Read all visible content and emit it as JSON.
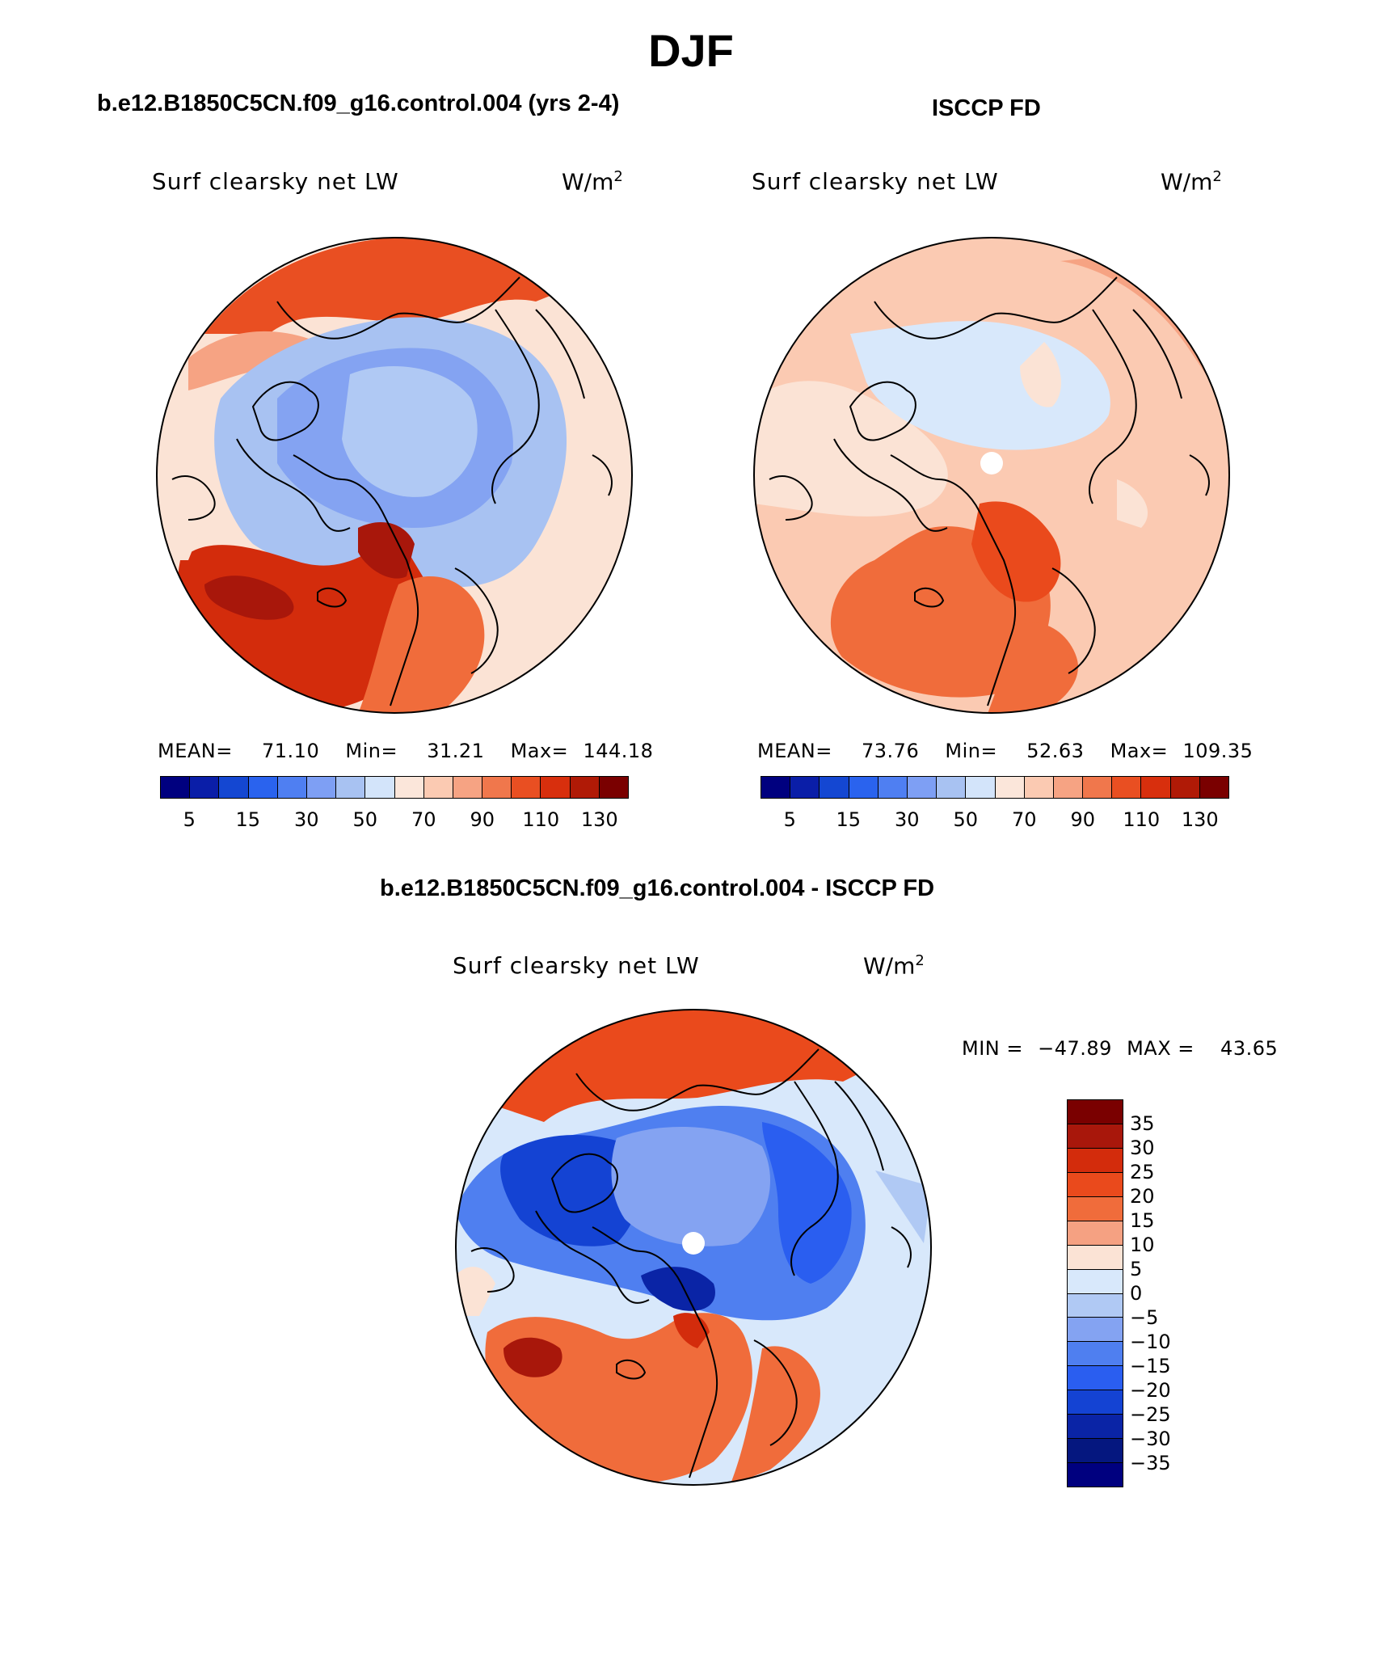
{
  "title": "DJF",
  "panels": {
    "model": {
      "title": "b.e12.B1850C5CN.f09_g16.control.004 (yrs 2-4)",
      "variable": "Surf clearsky net LW",
      "units_base": "W/m",
      "units_exp": "2",
      "mean_label": "MEAN=",
      "mean": "71.10",
      "min_label": "Min=",
      "min": "31.21",
      "max_label": "Max=",
      "max": "144.18"
    },
    "obs": {
      "title": "ISCCP FD",
      "variable": "Surf clearsky net LW",
      "units_base": "W/m",
      "units_exp": "2",
      "mean_label": "MEAN=",
      "mean": "73.76",
      "min_label": "Min=",
      "min": "52.63",
      "max_label": "Max=",
      "max": "109.35"
    },
    "diff": {
      "title": "b.e12.B1850C5CN.f09_g16.control.004 - ISCCP FD",
      "variable": "Surf clearsky net LW",
      "units_base": "W/m",
      "units_exp": "2",
      "min_label": "MIN =",
      "min": "−47.89",
      "max_label": "MAX =",
      "max": "43.65"
    }
  },
  "colorbar_abs": {
    "colors": [
      "#00007f",
      "#0a1ea8",
      "#1447d2",
      "#2a63ee",
      "#4f7ff2",
      "#7e9ff4",
      "#a8c2f2",
      "#d3e4fa",
      "#fbe6da",
      "#fbcab2",
      "#f6a383",
      "#f0774c",
      "#e94f22",
      "#d82f0d",
      "#b01a06",
      "#7a0000"
    ],
    "tick_labels": [
      "5",
      "15",
      "30",
      "50",
      "70",
      "90",
      "110",
      "130"
    ]
  },
  "colorbar_diff": {
    "colors": [
      "#7a0000",
      "#a8170b",
      "#d32c0c",
      "#ea4a1c",
      "#f06c3b",
      "#f5a182",
      "#fbe3d5",
      "#d8e8fb",
      "#b0c9f4",
      "#84a3f2",
      "#4f7ff0",
      "#2a5ef0",
      "#1443d3",
      "#0a24a6",
      "#05177f",
      "#00007f"
    ],
    "tick_labels": [
      "35",
      "30",
      "25",
      "20",
      "15",
      "10",
      "5",
      "0",
      "−5",
      "−10",
      "−15",
      "−20",
      "−25",
      "−30",
      "−35"
    ]
  }
}
